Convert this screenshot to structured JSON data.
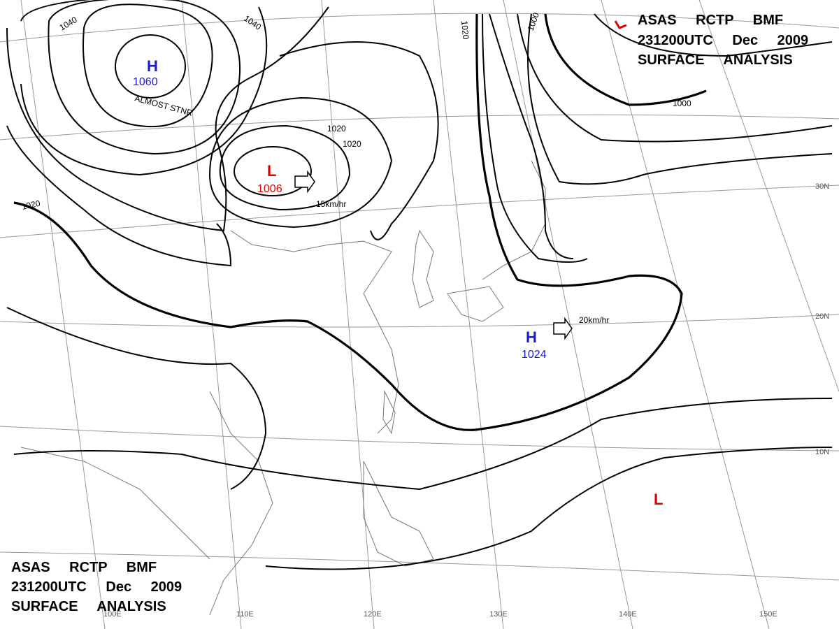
{
  "header": {
    "lines": [
      "ASAS RCTP BMF",
      "231200UTC Dec 2009",
      "SURFACE ANALYSIS"
    ]
  },
  "systems": [
    {
      "symbol": "H",
      "pressure": "1060",
      "note": "ALMOST STNR"
    },
    {
      "symbol": "L",
      "pressure": "1006",
      "motion": "15km/hr"
    },
    {
      "symbol": "H",
      "pressure": "1024",
      "motion": "20km/hr"
    },
    {
      "symbol": "L"
    }
  ],
  "isobar_labels": [
    "1040",
    "1040",
    "1020",
    "1020",
    "1020",
    "1020",
    "1000",
    "1000"
  ],
  "latitudes": [
    "30N",
    "20N",
    "10N"
  ],
  "longitudes": [
    "100E",
    "110E",
    "120E",
    "130E",
    "140E",
    "150E"
  ]
}
